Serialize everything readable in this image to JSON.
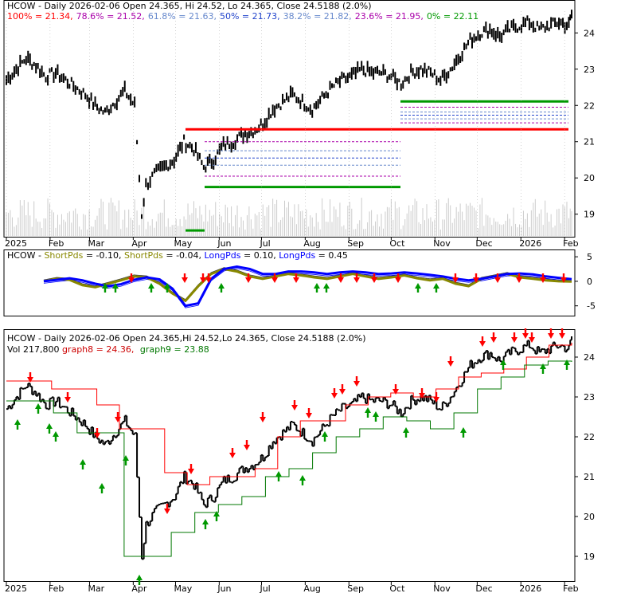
{
  "colors": {
    "price": "#000000",
    "fib_red": "#ff0000",
    "fib_purple": "#aa00aa",
    "fib_green": "#009900",
    "fib_blue": "#2244cc",
    "fib_lightblue": "#6688cc",
    "short_pds": "#888800",
    "long_pds": "#0000ff",
    "ma8": "#ff0000",
    "ma9": "#007700",
    "volume": "#cccccc",
    "grid": "#aaaaaa"
  },
  "panels": {
    "top": {
      "fib_legend": [
        {
          "text": "100% = 21.34,",
          "color": "#ff0000"
        },
        {
          "text": "78.6% = 21.52,",
          "color": "#aa00aa"
        },
        {
          "text": "61.8% = 21.63,",
          "color": "#6688cc"
        },
        {
          "text": "50% = 21.73,",
          "color": "#2244cc"
        },
        {
          "text": "38.2% = 21.82,",
          "color": "#6688cc"
        },
        {
          "text": "23.6% = 21.95,",
          "color": "#aa00aa"
        },
        {
          "text": "0% = 22.11",
          "color": "#009900"
        }
      ],
      "title": "HCOW - Daily 2026-02-06 Open 24.365, Hi 24.52, Lo 24.365, Close 24.5188 (2.0%)",
      "y_ticks": [
        "24",
        "23",
        "22",
        "21",
        "20",
        "19"
      ],
      "x_ticks": [
        "2025",
        "Feb",
        "Mar",
        "Apr",
        "May",
        "Jun",
        "Jul",
        "Aug",
        "Sep",
        "Oct",
        "Nov",
        "Dec",
        "2026",
        "Feb"
      ]
    },
    "middle": {
      "legend": [
        {
          "text": "HCOW - ",
          "color": "#000000"
        },
        {
          "text": "ShortPds",
          "color": "#888800"
        },
        {
          "text": " = -0.10, ",
          "color": "#000000"
        },
        {
          "text": "ShortPds",
          "color": "#888800"
        },
        {
          "text": " = -0.04, ",
          "color": "#000000"
        },
        {
          "text": "LongPds",
          "color": "#0000ff"
        },
        {
          "text": " = 0.10, ",
          "color": "#000000"
        },
        {
          "text": "LongPds",
          "color": "#0000ff"
        },
        {
          "text": " = 0.45",
          "color": "#000000"
        }
      ],
      "y_ticks": [
        "5",
        "0",
        "-5"
      ]
    },
    "bottom": {
      "title": "HCOW - Daily 2026-02-06 Open 24.365,Hi 24.52,Lo 24.365, Close 24.5188 (2.0%)",
      "vol_prefix": "Vol 217,800 ",
      "g8_label": "graph8 = 24.36,",
      "g9_label": "graph9 = 23.88",
      "y_ticks": [
        "24",
        "23",
        "22",
        "21",
        "20",
        "19"
      ],
      "x_ticks": [
        "2025",
        "Feb",
        "Mar",
        "Apr",
        "May",
        "Jun",
        "Jul",
        "Aug",
        "Sep",
        "Oct",
        "Nov",
        "Dec",
        "2026",
        "Feb"
      ]
    }
  },
  "chart_data": [
    {
      "type": "line",
      "title": "HCOW - Daily 2026-02-06 Open 24.365, Hi 24.52, Lo 24.365, Close 24.5188 (2.0%)",
      "x_label": "",
      "y_label": "",
      "x_range": [
        "2025-01-01",
        "2026-02-06"
      ],
      "ylim": [
        18.4,
        24.6
      ],
      "grid": false,
      "series": [
        {
          "name": "Close",
          "x": [
            "2025-01-01",
            "2025-01-08",
            "2025-01-15",
            "2025-01-22",
            "2025-01-29",
            "2025-02-05",
            "2025-02-12",
            "2025-02-19",
            "2025-02-26",
            "2025-03-05",
            "2025-03-12",
            "2025-03-19",
            "2025-03-26",
            "2025-04-02",
            "2025-04-07",
            "2025-04-10",
            "2025-04-16",
            "2025-04-23",
            "2025-04-30",
            "2025-05-07",
            "2025-05-14",
            "2025-05-21",
            "2025-05-28",
            "2025-06-04",
            "2025-06-11",
            "2025-06-18",
            "2025-06-25",
            "2025-07-02",
            "2025-07-09",
            "2025-07-16",
            "2025-07-23",
            "2025-07-30",
            "2025-08-06",
            "2025-08-13",
            "2025-08-20",
            "2025-08-27",
            "2025-09-03",
            "2025-09-10",
            "2025-09-17",
            "2025-09-24",
            "2025-10-01",
            "2025-10-08",
            "2025-10-15",
            "2025-10-22",
            "2025-10-29",
            "2025-11-05",
            "2025-11-12",
            "2025-11-19",
            "2025-11-26",
            "2025-12-03",
            "2025-12-10",
            "2025-12-17",
            "2025-12-24",
            "2025-12-31",
            "2026-01-07",
            "2026-01-14",
            "2026-01-21",
            "2026-01-28",
            "2026-02-04",
            "2026-02-06"
          ],
          "values": [
            22.7,
            23.0,
            23.3,
            23.1,
            22.8,
            22.9,
            22.7,
            22.5,
            22.3,
            22.0,
            21.8,
            22.1,
            22.4,
            22.0,
            19.0,
            19.8,
            20.1,
            20.3,
            20.5,
            21.0,
            20.8,
            20.3,
            20.5,
            20.9,
            21.0,
            21.2,
            21.3,
            21.5,
            21.9,
            22.1,
            22.3,
            22.1,
            21.9,
            22.2,
            22.5,
            22.7,
            22.8,
            23.0,
            22.9,
            22.9,
            22.8,
            22.6,
            22.9,
            23.0,
            22.9,
            22.7,
            23.0,
            23.4,
            23.8,
            24.0,
            24.1,
            23.9,
            24.1,
            24.2,
            24.3,
            24.1,
            24.2,
            24.3,
            24.2,
            24.52
          ]
        }
      ],
      "fibonacci": [
        {
          "name": "100%",
          "value": 21.34
        },
        {
          "name": "78.6%",
          "value": 21.52
        },
        {
          "name": "61.8%",
          "value": 21.63
        },
        {
          "name": "50%",
          "value": 21.73
        },
        {
          "name": "38.2%",
          "value": 21.82
        },
        {
          "name": "23.6%",
          "value": 21.95
        },
        {
          "name": "0%",
          "value": 22.11
        }
      ]
    },
    {
      "type": "line",
      "title": "HCOW - ShortPds = -0.10, ShortPds = -0.04, LongPds = 0.10, LongPds = 0.45",
      "ylim": [
        -7,
        6
      ],
      "series": [
        {
          "name": "ShortPds",
          "values": [
            0,
            0.5,
            0.3,
            -0.8,
            -1.2,
            -0.5,
            0.2,
            1.0,
            0.8,
            -0.5,
            -2.5,
            -4.0,
            -1.0,
            1.5,
            2.5,
            2.0,
            1.0,
            0.5,
            1.0,
            1.5,
            1.2,
            0.8,
            0.5,
            1.0,
            1.5,
            1.0,
            0.5,
            0.8,
            1.2,
            0.6,
            0.2,
            0.5,
            -0.5,
            -1.0,
            0.5,
            1.0,
            1.5,
            0.8,
            0.5,
            0.2,
            0.0,
            -0.04
          ]
        },
        {
          "name": "LongPds",
          "values": [
            0,
            0.3,
            0.6,
            0.2,
            -0.5,
            -1.0,
            -0.6,
            0.3,
            0.8,
            0.4,
            -1.5,
            -5.0,
            -4.5,
            0.5,
            2.5,
            3.0,
            2.5,
            1.5,
            1.5,
            2.0,
            2.0,
            1.8,
            1.5,
            1.8,
            2.0,
            1.8,
            1.5,
            1.6,
            1.8,
            1.6,
            1.3,
            1.0,
            0.5,
            0.2,
            0.5,
            1.0,
            1.5,
            1.6,
            1.4,
            1.0,
            0.7,
            0.45
          ]
        }
      ]
    },
    {
      "type": "line",
      "title": "HCOW - Daily 2026-02-06 Open 24.365,Hi 24.52,Lo 24.365, Close 24.5188 (2.0%)",
      "ylim": [
        18.4,
        24.6
      ],
      "series": [
        {
          "name": "graph8",
          "values": [
            23.4,
            23.4,
            23.2,
            23.2,
            22.8,
            22.2,
            22.2,
            21.1,
            20.8,
            21.0,
            21.0,
            21.2,
            22.0,
            22.4,
            22.4,
            22.8,
            23.0,
            23.1,
            23.0,
            23.2,
            23.5,
            23.6,
            23.7,
            24.0,
            24.3,
            24.36
          ]
        },
        {
          "name": "graph9",
          "values": [
            22.9,
            22.9,
            22.6,
            22.1,
            22.1,
            19.0,
            19.0,
            19.6,
            20.1,
            20.3,
            20.5,
            21.0,
            21.2,
            21.6,
            22.0,
            22.2,
            22.5,
            22.4,
            22.2,
            22.6,
            23.2,
            23.5,
            23.8,
            23.9,
            23.88
          ]
        }
      ]
    }
  ]
}
